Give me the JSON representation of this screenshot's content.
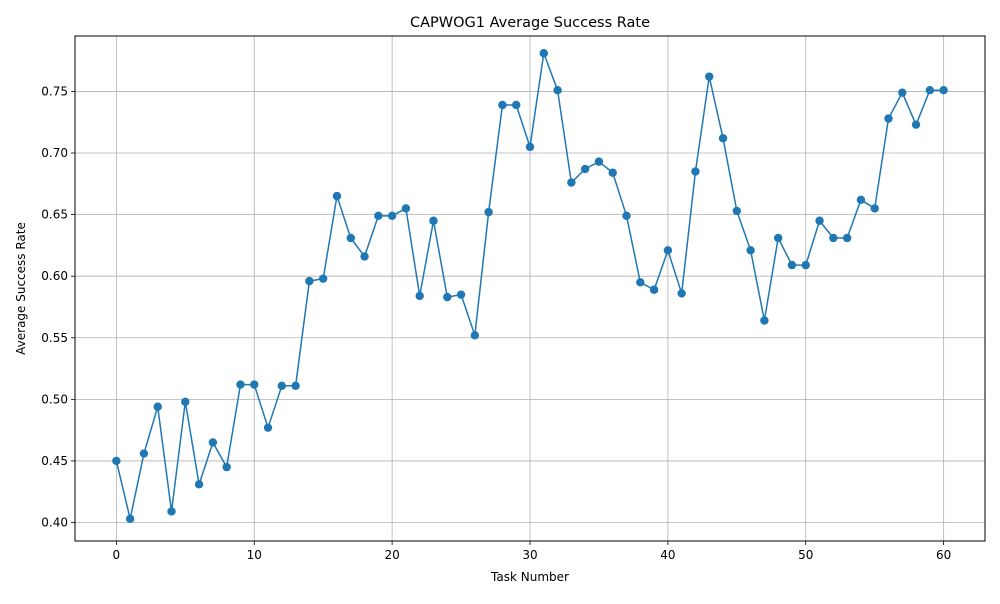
{
  "chart_data": {
    "type": "line",
    "title": "CAPWOG1 Average Success Rate",
    "xlabel": "Task Number",
    "ylabel": "Average Success Rate",
    "xlim": [
      -3,
      63
    ],
    "ylim": [
      0.385,
      0.795
    ],
    "xticks": [
      0,
      10,
      20,
      30,
      40,
      50,
      60
    ],
    "yticks": [
      "0.40",
      "0.45",
      "0.50",
      "0.55",
      "0.60",
      "0.65",
      "0.70",
      "0.75"
    ],
    "grid": true,
    "marker": "circle",
    "series": [
      {
        "color": "#1f77b4",
        "x": [
          0,
          1,
          2,
          3,
          4,
          5,
          6,
          7,
          8,
          9,
          10,
          11,
          12,
          13,
          14,
          15,
          16,
          17,
          18,
          19,
          20,
          21,
          22,
          23,
          24,
          25,
          26,
          27,
          28,
          29,
          30,
          31,
          32,
          33,
          34,
          35,
          36,
          37,
          38,
          39,
          40,
          41,
          42,
          43,
          44,
          45,
          46,
          47,
          48,
          49,
          50,
          51,
          52,
          53,
          54,
          55,
          56,
          57,
          58,
          59,
          60
        ],
        "values": [
          0.45,
          0.403,
          0.456,
          0.494,
          0.409,
          0.498,
          0.431,
          0.465,
          0.445,
          0.512,
          0.512,
          0.477,
          0.511,
          0.511,
          0.596,
          0.598,
          0.665,
          0.631,
          0.616,
          0.649,
          0.649,
          0.655,
          0.584,
          0.645,
          0.583,
          0.585,
          0.552,
          0.652,
          0.739,
          0.739,
          0.705,
          0.781,
          0.751,
          0.676,
          0.687,
          0.693,
          0.684,
          0.649,
          0.595,
          0.589,
          0.621,
          0.586,
          0.685,
          0.762,
          0.712,
          0.653,
          0.621,
          0.564,
          0.631,
          0.609,
          0.609,
          0.645,
          0.631,
          0.631,
          0.662,
          0.655,
          0.728,
          0.749,
          0.723,
          0.751,
          0.751
        ]
      }
    ]
  }
}
